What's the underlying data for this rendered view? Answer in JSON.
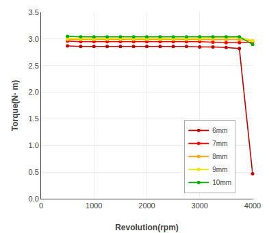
{
  "chart_data": {
    "type": "line",
    "xlabel": "Revolution(rpm)",
    "ylabel": "Torque(N· m)",
    "x": [
      500,
      750,
      1000,
      1250,
      1500,
      1750,
      2000,
      2250,
      2500,
      2750,
      3000,
      3250,
      3500,
      3750,
      4000
    ],
    "series": [
      {
        "name": "6mm",
        "color": "#c00000",
        "values": [
          2.87,
          2.86,
          2.86,
          2.86,
          2.86,
          2.86,
          2.86,
          2.86,
          2.86,
          2.86,
          2.85,
          2.85,
          2.84,
          2.82,
          0.47
        ]
      },
      {
        "name": "7mm",
        "color": "#ff0000",
        "values": [
          2.96,
          2.95,
          2.95,
          2.95,
          2.95,
          2.95,
          2.95,
          2.95,
          2.95,
          2.95,
          2.95,
          2.94,
          2.93,
          2.93,
          2.94
        ]
      },
      {
        "name": "8mm",
        "color": "#ffa500",
        "values": [
          2.99,
          2.99,
          2.99,
          2.99,
          2.99,
          2.99,
          2.99,
          2.99,
          2.99,
          2.99,
          2.99,
          2.99,
          2.99,
          2.99,
          2.96
        ]
      },
      {
        "name": "9mm",
        "color": "#e8e800",
        "values": [
          3.01,
          3.01,
          3.01,
          3.01,
          3.01,
          3.01,
          3.01,
          3.01,
          3.01,
          3.01,
          3.01,
          3.02,
          3.02,
          3.03,
          2.97
        ]
      },
      {
        "name": "10mm",
        "color": "#00aa00",
        "values": [
          3.05,
          3.04,
          3.04,
          3.04,
          3.04,
          3.04,
          3.04,
          3.04,
          3.04,
          3.04,
          3.04,
          3.04,
          3.04,
          3.04,
          2.9
        ]
      }
    ],
    "xlim": [
      0,
      4000
    ],
    "ylim": [
      0,
      3.5
    ],
    "xticks": [
      0,
      1000,
      2000,
      3000,
      4000
    ],
    "yticks": [
      {
        "value": 0,
        "label": "0.0"
      },
      0.5,
      {
        "value": 1,
        "label": "1.0"
      },
      1.5,
      {
        "value": 2,
        "label": "2.0"
      },
      2.5,
      {
        "value": 3,
        "label": "3.0"
      },
      3.5
    ],
    "grid": true,
    "legend": "lower right",
    "marker": "circle",
    "line_style": "solid"
  }
}
